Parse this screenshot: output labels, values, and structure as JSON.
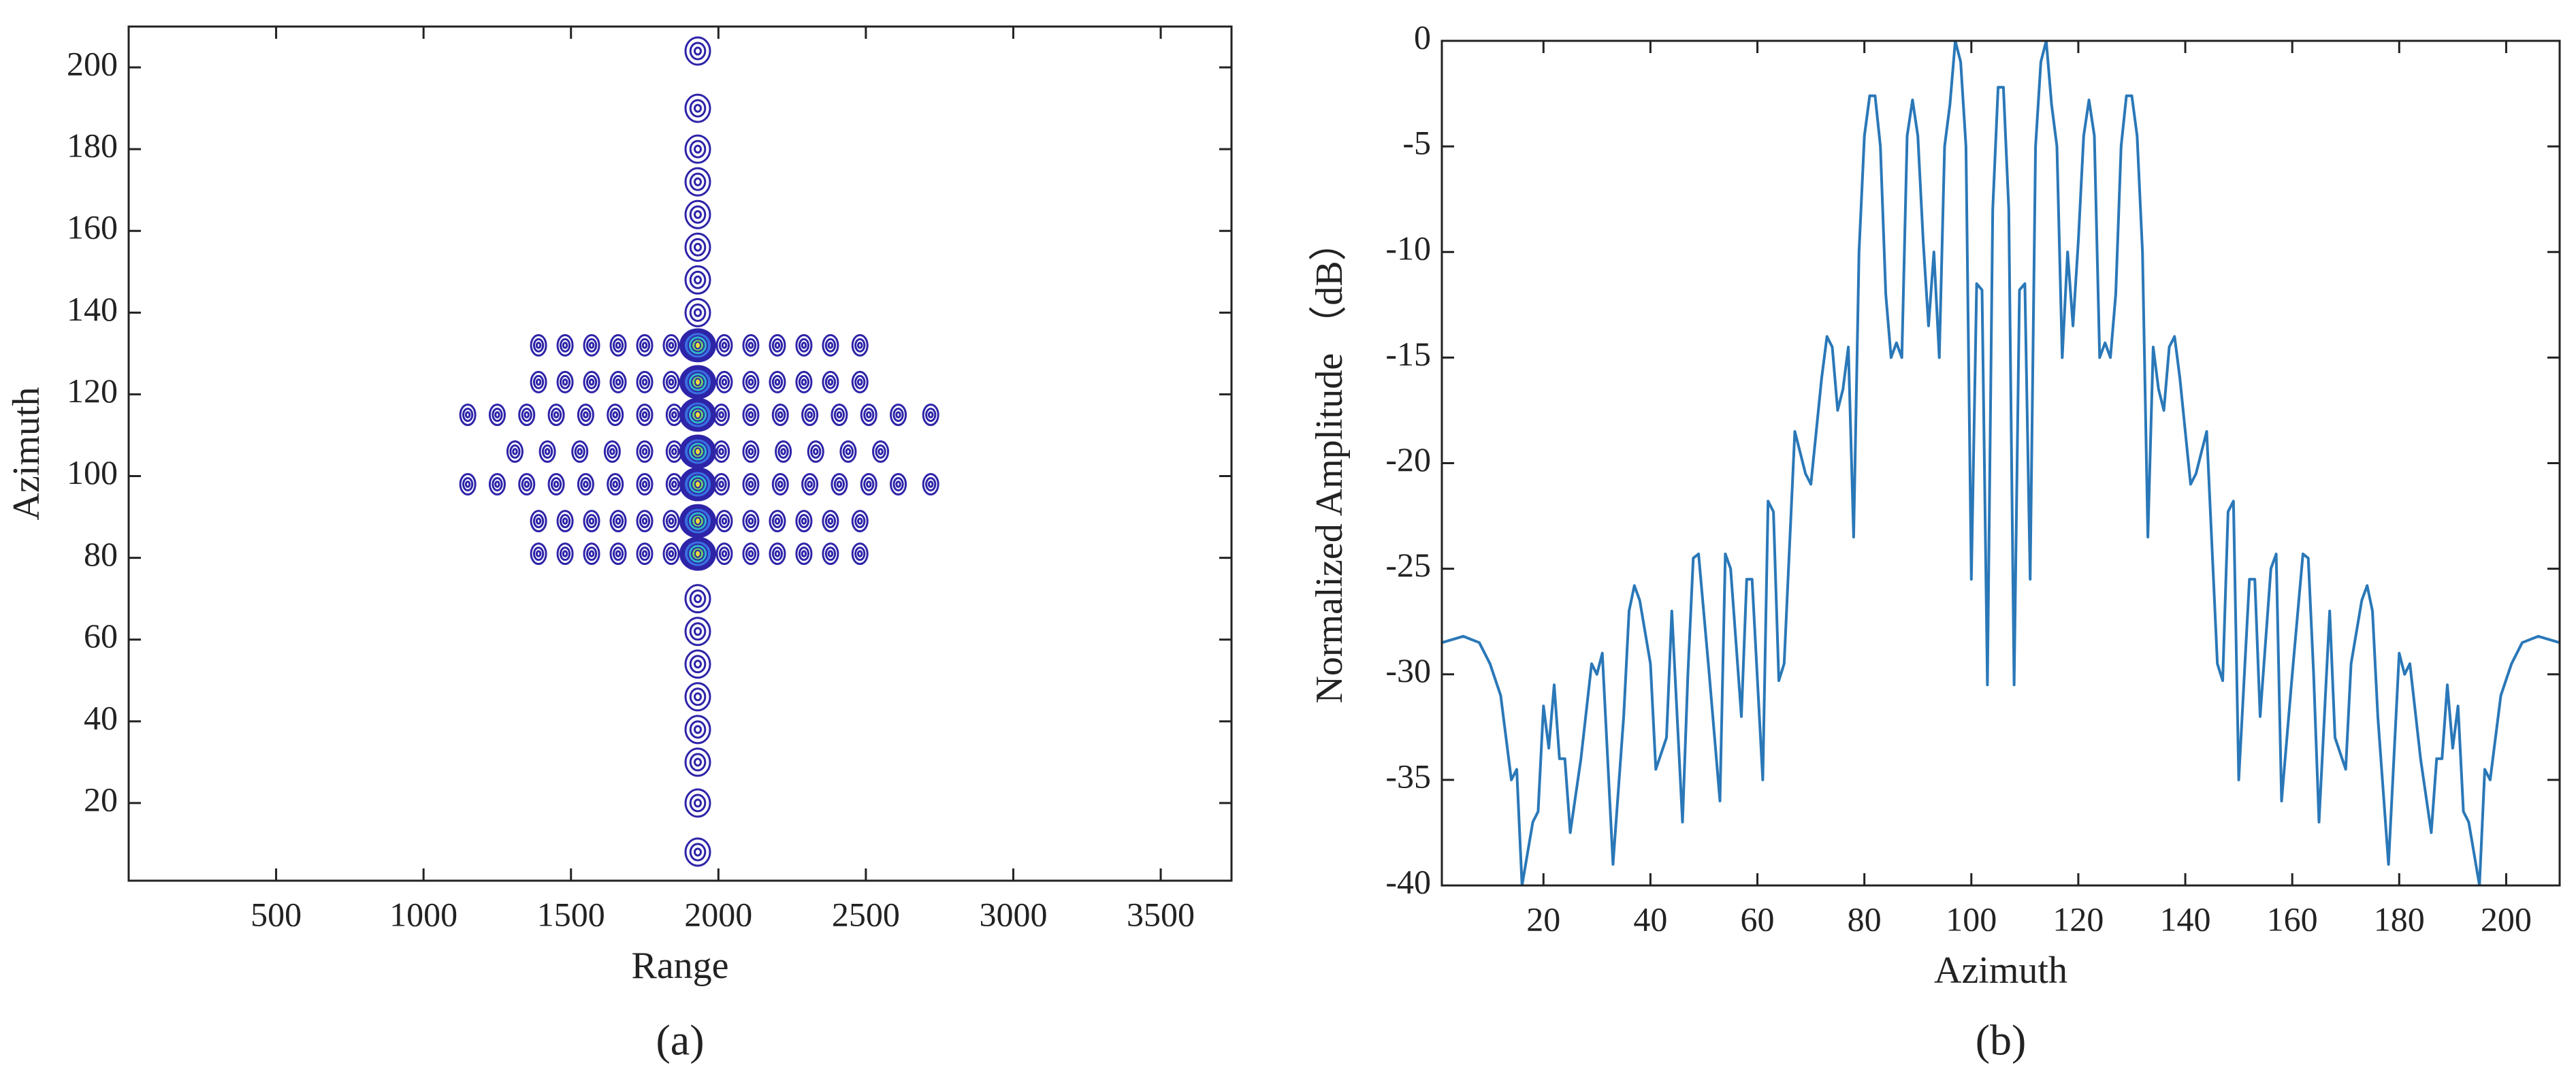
{
  "chart_data": [
    {
      "type": "contour",
      "caption": "(a)",
      "x_label": "Range",
      "y_label": "Azimuth",
      "color": "#2e24a8",
      "xlim": [
        0,
        3740
      ],
      "ylim": [
        1,
        210
      ],
      "xticks": [
        500,
        1000,
        1500,
        2000,
        2500,
        3000,
        3500
      ],
      "yticks": [
        20,
        40,
        60,
        80,
        100,
        120,
        140,
        160,
        180,
        200
      ],
      "x": [
        1390,
        1480,
        1570,
        1660,
        1750,
        1840,
        2020,
        2110,
        2200,
        2290,
        2380,
        2480,
        1390,
        1480,
        1570,
        1660,
        1750,
        1840,
        2020,
        2110,
        2200,
        2290,
        2380,
        2480,
        1150,
        1250,
        1350,
        1450,
        1550,
        1650,
        1750,
        1850,
        2010,
        2110,
        2210,
        2310,
        2410,
        2510,
        2610,
        2720,
        1310,
        1420,
        1530,
        1640,
        1750,
        1850,
        2010,
        2110,
        2220,
        2330,
        2440,
        2550,
        1150,
        1250,
        1350,
        1450,
        1550,
        1650,
        1750,
        1850,
        2010,
        2110,
        2210,
        2310,
        2410,
        2510,
        2610,
        2720,
        1390,
        1480,
        1570,
        1660,
        1750,
        1840,
        2020,
        2110,
        2200,
        2290,
        2380,
        2480,
        1390,
        1480,
        1570,
        1660,
        1750,
        1840,
        2020,
        2110,
        2200,
        2290,
        2380,
        2480,
        1930,
        1930,
        1930,
        1930,
        1930,
        1930,
        1930,
        1930,
        1930,
        1930,
        1930,
        1930,
        1930,
        1930,
        1930,
        1930,
        1930,
        1930,
        1930,
        1930,
        1930,
        1930,
        1930
      ],
      "y": [
        132,
        132,
        132,
        132,
        132,
        132,
        132,
        132,
        132,
        132,
        132,
        132,
        123,
        123,
        123,
        123,
        123,
        123,
        123,
        123,
        123,
        123,
        123,
        123,
        115,
        115,
        115,
        115,
        115,
        115,
        115,
        115,
        115,
        115,
        115,
        115,
        115,
        115,
        115,
        115,
        106,
        106,
        106,
        106,
        106,
        106,
        106,
        106,
        106,
        106,
        106,
        106,
        98,
        98,
        98,
        98,
        98,
        98,
        98,
        98,
        98,
        98,
        98,
        98,
        98,
        98,
        98,
        98,
        89,
        89,
        89,
        89,
        89,
        89,
        89,
        89,
        89,
        89,
        89,
        89,
        81,
        81,
        81,
        81,
        81,
        81,
        81,
        81,
        81,
        81,
        81,
        81,
        8,
        20,
        30,
        38,
        46,
        54,
        62,
        70,
        81,
        89,
        98,
        106,
        115,
        123,
        132,
        140,
        148,
        156,
        164,
        172,
        180,
        190,
        204
      ]
    },
    {
      "type": "line",
      "caption": "(b)",
      "x_label": "Azimuth",
      "y_label": "Normalized Amplitude （dB）",
      "color": "#2a78b8",
      "xlim": [
        1,
        210
      ],
      "ylim": [
        -40,
        0
      ],
      "xticks": [
        20,
        40,
        60,
        80,
        100,
        120,
        140,
        160,
        180,
        200
      ],
      "yticks": [
        -40,
        -35,
        -30,
        -25,
        -20,
        -15,
        -10,
        -5,
        0
      ],
      "x": [
        1,
        5,
        8,
        10,
        12,
        14,
        15,
        16,
        18,
        19,
        20,
        21,
        22,
        23,
        24,
        25,
        27,
        29,
        30,
        31,
        33,
        35,
        36,
        37,
        38,
        40,
        41,
        43,
        44,
        46,
        47,
        48,
        49,
        51,
        53,
        54,
        55,
        57,
        58,
        59,
        61,
        62,
        63,
        64,
        65,
        67,
        68,
        69,
        70,
        72,
        73,
        74,
        75,
        76,
        77,
        78,
        79,
        80,
        81,
        82,
        83,
        84,
        85,
        86,
        87,
        88,
        89,
        90,
        91,
        92,
        93,
        94,
        95,
        96,
        97,
        98,
        99,
        100,
        101,
        102,
        103,
        104,
        105,
        106,
        107,
        108,
        109,
        110,
        111,
        112,
        113,
        114,
        115,
        116,
        117,
        118,
        119,
        120,
        121,
        122,
        123,
        124,
        125,
        126,
        127,
        128,
        129,
        130,
        131,
        132,
        133,
        134,
        135,
        136,
        137,
        138,
        139,
        141,
        142,
        143,
        144,
        146,
        147,
        148,
        149,
        150,
        152,
        153,
        154,
        156,
        157,
        158,
        160,
        162,
        163,
        164,
        165,
        167,
        168,
        170,
        171,
        173,
        174,
        175,
        176,
        178,
        180,
        181,
        182,
        184,
        186,
        187,
        188,
        189,
        190,
        191,
        192,
        193,
        195,
        196,
        197,
        199,
        201,
        203,
        206,
        210
      ],
      "values": [
        -28.5,
        -28.2,
        -28.5,
        -29.5,
        -31,
        -35,
        -34.5,
        -40,
        -37,
        -36.5,
        -31.5,
        -33.5,
        -30.5,
        -34,
        -34,
        -37.5,
        -34,
        -29.5,
        -30,
        -29,
        -39,
        -32,
        -27,
        -25.8,
        -26.5,
        -29.5,
        -34.5,
        -33,
        -27,
        -37,
        -30,
        -24.5,
        -24.3,
        -30,
        -36,
        -24.3,
        -25,
        -32,
        -25.5,
        -25.5,
        -35,
        -21.8,
        -22.3,
        -30.3,
        -29.5,
        -18.5,
        -19.5,
        -20.5,
        -21,
        -16,
        -14,
        -14.5,
        -17.5,
        -16.5,
        -14.5,
        -23.5,
        -10,
        -4.5,
        -2.6,
        -2.6,
        -5,
        -12,
        -15,
        -14.3,
        -15,
        -4.5,
        -2.8,
        -4.5,
        -9.5,
        -13.5,
        -10,
        -15,
        -5,
        -3,
        0,
        -1,
        -5,
        -25.5,
        -11.5,
        -11.8,
        -30.5,
        -8,
        -2.2,
        -2.2,
        -8,
        -30.5,
        -11.8,
        -11.5,
        -25.5,
        -5,
        -1,
        0,
        -3,
        -5,
        -15,
        -10,
        -13.5,
        -9.5,
        -4.5,
        -2.8,
        -4.5,
        -15,
        -14.3,
        -15,
        -12,
        -5,
        -2.6,
        -2.6,
        -4.5,
        -10,
        -23.5,
        -14.5,
        -16.5,
        -17.5,
        -14.5,
        -14,
        -16,
        -21,
        -20.5,
        -19.5,
        -18.5,
        -29.5,
        -30.3,
        -22.3,
        -21.8,
        -35,
        -25.5,
        -25.5,
        -32,
        -25,
        -24.3,
        -36,
        -30,
        -24.3,
        -24.5,
        -30,
        -37,
        -27,
        -33,
        -34.5,
        -29.5,
        -26.5,
        -25.8,
        -27,
        -32,
        -39,
        -29,
        -30,
        -29.5,
        -34,
        -37.5,
        -34,
        -34,
        -30.5,
        -33.5,
        -31.5,
        -36.5,
        -37,
        -40,
        -34.5,
        -35,
        -31,
        -29.5,
        -28.5,
        -28.2,
        -28.5
      ]
    }
  ]
}
